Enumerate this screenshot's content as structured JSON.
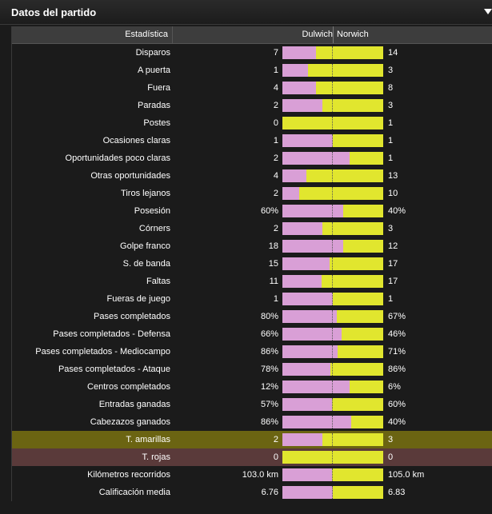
{
  "panel": {
    "title": "Datos del partido",
    "menu_icon": "dropdown-arrow-icon"
  },
  "header": {
    "stat": "Estadística",
    "home": "Dulwich",
    "away": "Norwich"
  },
  "colors": {
    "home_bar": "#d99fd6",
    "away_bar": "#e1e62e",
    "yellow_row": "#6b6412",
    "red_row": "#5a3a3a"
  },
  "rows": [
    {
      "label": "Disparos",
      "home": "7",
      "away": "14",
      "home_share": 0.33,
      "style": ""
    },
    {
      "label": "A puerta",
      "home": "1",
      "away": "3",
      "home_share": 0.25,
      "style": ""
    },
    {
      "label": "Fuera",
      "home": "4",
      "away": "8",
      "home_share": 0.33,
      "style": ""
    },
    {
      "label": "Paradas",
      "home": "2",
      "away": "3",
      "home_share": 0.4,
      "style": ""
    },
    {
      "label": "Postes",
      "home": "0",
      "away": "1",
      "home_share": 0.0,
      "style": ""
    },
    {
      "label": "Ocasiones claras",
      "home": "1",
      "away": "1",
      "home_share": 0.5,
      "style": ""
    },
    {
      "label": "Oportunidades poco claras",
      "home": "2",
      "away": "1",
      "home_share": 0.67,
      "style": ""
    },
    {
      "label": "Otras oportunidades",
      "home": "4",
      "away": "13",
      "home_share": 0.235,
      "style": ""
    },
    {
      "label": "Tiros lejanos",
      "home": "2",
      "away": "10",
      "home_share": 0.167,
      "style": ""
    },
    {
      "label": "Posesión",
      "home": "60%",
      "away": "40%",
      "home_share": 0.6,
      "style": ""
    },
    {
      "label": "Córners",
      "home": "2",
      "away": "3",
      "home_share": 0.4,
      "style": ""
    },
    {
      "label": "Golpe franco",
      "home": "18",
      "away": "12",
      "home_share": 0.6,
      "style": ""
    },
    {
      "label": "S. de banda",
      "home": "15",
      "away": "17",
      "home_share": 0.47,
      "style": ""
    },
    {
      "label": "Faltas",
      "home": "11",
      "away": "17",
      "home_share": 0.39,
      "style": ""
    },
    {
      "label": "Fueras de juego",
      "home": "1",
      "away": "1",
      "home_share": 0.5,
      "style": ""
    },
    {
      "label": "Pases completados",
      "home": "80%",
      "away": "67%",
      "home_share": 0.54,
      "style": ""
    },
    {
      "label": "Pases completados - Defensa",
      "home": "66%",
      "away": "46%",
      "home_share": 0.59,
      "style": ""
    },
    {
      "label": "Pases completados - Mediocampo",
      "home": "86%",
      "away": "71%",
      "home_share": 0.55,
      "style": ""
    },
    {
      "label": "Pases completados - Ataque",
      "home": "78%",
      "away": "86%",
      "home_share": 0.48,
      "style": ""
    },
    {
      "label": "Centros completados",
      "home": "12%",
      "away": "6%",
      "home_share": 0.67,
      "style": ""
    },
    {
      "label": "Entradas ganadas",
      "home": "57%",
      "away": "60%",
      "home_share": 0.49,
      "style": ""
    },
    {
      "label": "Cabezazos ganados",
      "home": "86%",
      "away": "40%",
      "home_share": 0.68,
      "style": ""
    },
    {
      "label": "T. amarillas",
      "home": "2",
      "away": "3",
      "home_share": 0.4,
      "style": "yellow"
    },
    {
      "label": "T. rojas",
      "home": "0",
      "away": "0",
      "home_share": 0.0,
      "style": "red"
    },
    {
      "label": "Kilómetros recorridos",
      "home": "103.0 km",
      "away": "105.0 km",
      "home_share": 0.495,
      "style": ""
    },
    {
      "label": "Calificación media",
      "home": "6.76",
      "away": "6.83",
      "home_share": 0.497,
      "style": ""
    }
  ]
}
